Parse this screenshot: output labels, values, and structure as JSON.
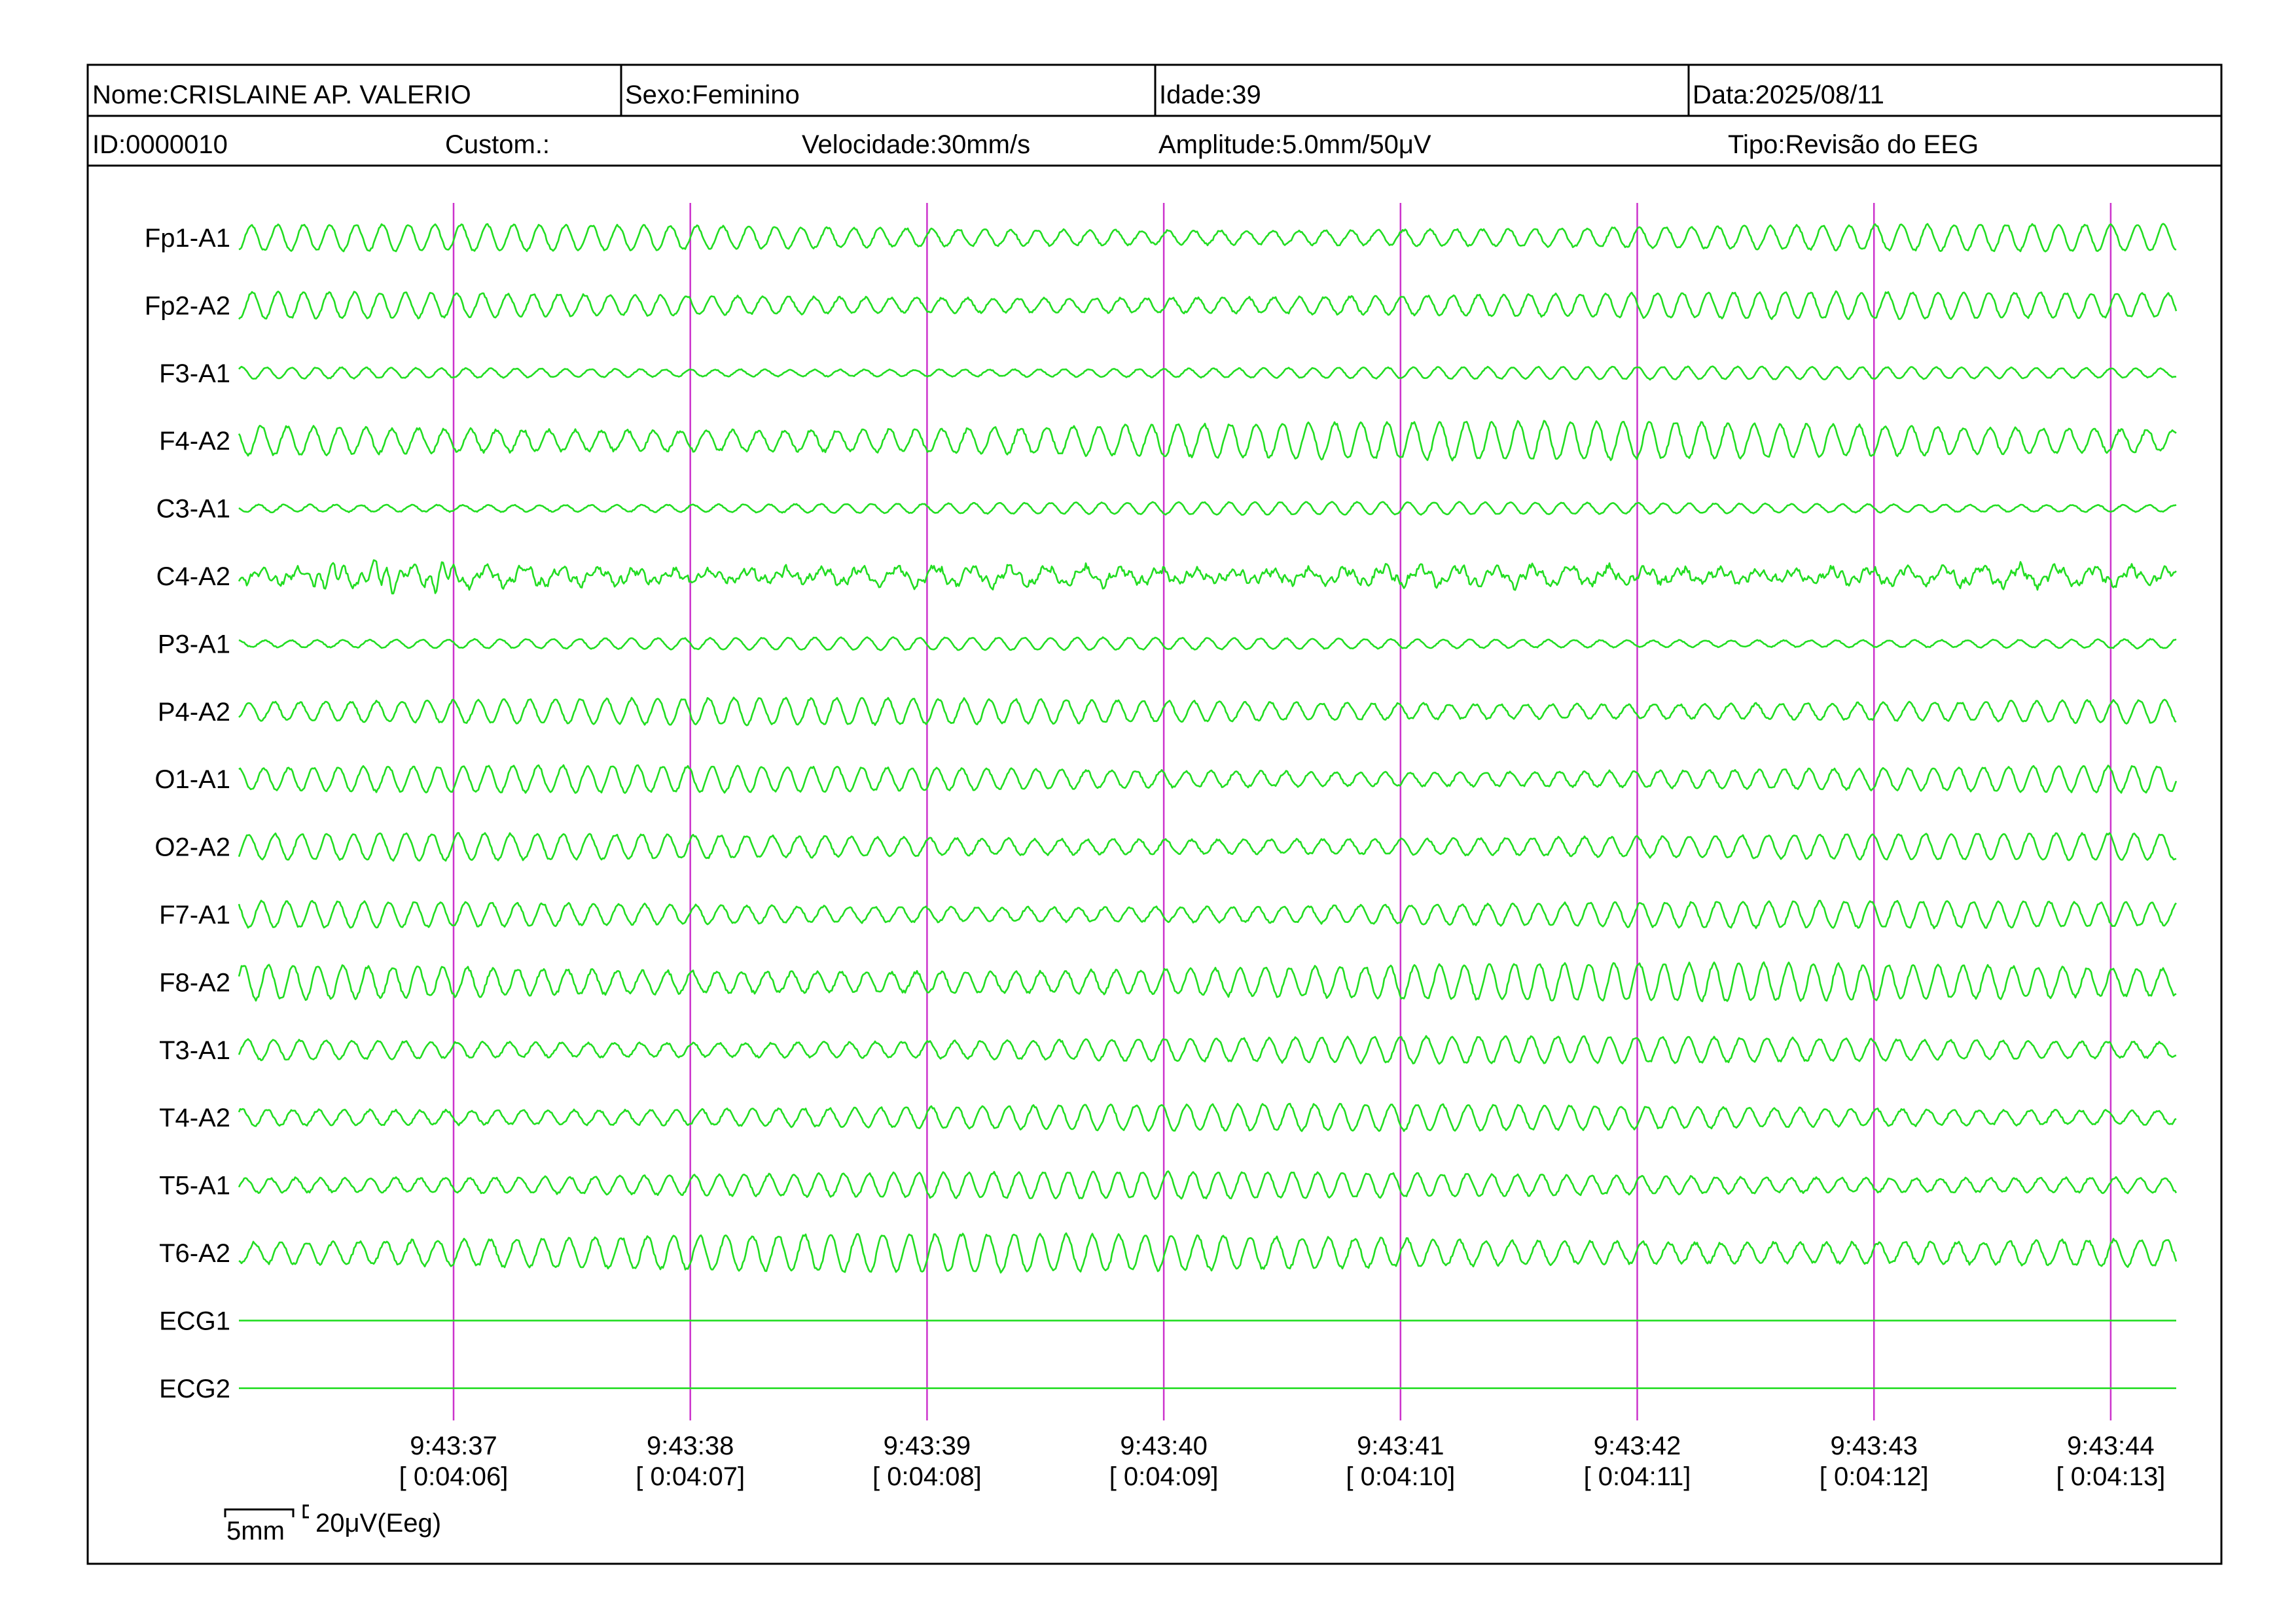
{
  "header": {
    "row1": {
      "nome": "Nome:CRISLAINE AP. VALERIO",
      "sexo": "Sexo:Feminino",
      "idade": "Idade:39",
      "data": "Data:2025/08/11"
    },
    "row2": {
      "id": "ID:0000010",
      "custom": "Custom.:",
      "velocidade": "Velocidade:30mm/s",
      "amplitude": "Amplitude:5.0mm/50μV",
      "tipo": "Tipo:Revisão do EEG"
    }
  },
  "colors": {
    "trace": "#22dd22",
    "marker": "#cc33cc",
    "border": "#000000"
  },
  "chart_data": {
    "type": "line",
    "channels": [
      {
        "name": "Fp1-A1",
        "amplitude": "medium",
        "pattern": "rhythmic"
      },
      {
        "name": "Fp2-A2",
        "amplitude": "medium",
        "pattern": "rhythmic"
      },
      {
        "name": "F3-A1",
        "amplitude": "low",
        "pattern": "rhythmic"
      },
      {
        "name": "F4-A2",
        "amplitude": "high",
        "pattern": "rhythmic"
      },
      {
        "name": "C3-A1",
        "amplitude": "low",
        "pattern": "rhythmic"
      },
      {
        "name": "C4-A2",
        "amplitude": "low",
        "pattern": "irregular"
      },
      {
        "name": "P3-A1",
        "amplitude": "low",
        "pattern": "rhythmic"
      },
      {
        "name": "P4-A2",
        "amplitude": "medium",
        "pattern": "rhythmic"
      },
      {
        "name": "O1-A1",
        "amplitude": "medium",
        "pattern": "rhythmic"
      },
      {
        "name": "O2-A2",
        "amplitude": "medium",
        "pattern": "rhythmic"
      },
      {
        "name": "F7-A1",
        "amplitude": "medium",
        "pattern": "rhythmic"
      },
      {
        "name": "F8-A2",
        "amplitude": "high",
        "pattern": "rhythmic"
      },
      {
        "name": "T3-A1",
        "amplitude": "medium",
        "pattern": "rhythmic"
      },
      {
        "name": "T4-A2",
        "amplitude": "medium",
        "pattern": "rhythmic"
      },
      {
        "name": "T5-A1",
        "amplitude": "medium",
        "pattern": "rhythmic"
      },
      {
        "name": "T6-A2",
        "amplitude": "high",
        "pattern": "rhythmic"
      },
      {
        "name": "ECG1",
        "amplitude": "flat",
        "pattern": "flat"
      },
      {
        "name": "ECG2",
        "amplitude": "flat",
        "pattern": "flat"
      }
    ],
    "time_markers": [
      {
        "clock": "9:43:37",
        "elapsed": "[ 0:04:06]"
      },
      {
        "clock": "9:43:38",
        "elapsed": "[ 0:04:07]"
      },
      {
        "clock": "9:43:39",
        "elapsed": "[ 0:04:08]"
      },
      {
        "clock": "9:43:40",
        "elapsed": "[ 0:04:09]"
      },
      {
        "clock": "9:43:41",
        "elapsed": "[ 0:04:10]"
      },
      {
        "clock": "9:43:42",
        "elapsed": "[ 0:04:11]"
      },
      {
        "clock": "9:43:43",
        "elapsed": "[ 0:04:12]"
      },
      {
        "clock": "9:43:44",
        "elapsed": "[ 0:04:13]"
      }
    ],
    "scale": {
      "time": "5mm",
      "voltage": "20μV(Eeg)"
    }
  }
}
